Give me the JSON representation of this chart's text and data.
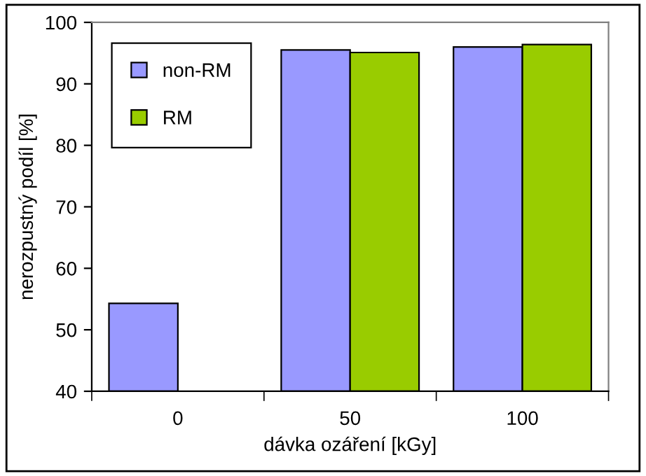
{
  "chart_data": {
    "type": "bar",
    "xlabel": "dávka ozáření [kGy]",
    "ylabel": "nerozpustný podíl [%]",
    "categories": [
      "0",
      "50",
      "100"
    ],
    "series": [
      {
        "name": "non-RM",
        "color": "#9999ff",
        "values": [
          54.3,
          95.5,
          96.0
        ]
      },
      {
        "name": "RM",
        "color": "#99cc00",
        "values": [
          null,
          95.1,
          96.4
        ]
      }
    ],
    "ylim": [
      40,
      100
    ],
    "yticks": [
      40,
      50,
      60,
      70,
      80,
      90,
      100
    ],
    "grid": false,
    "legend": "top left"
  }
}
